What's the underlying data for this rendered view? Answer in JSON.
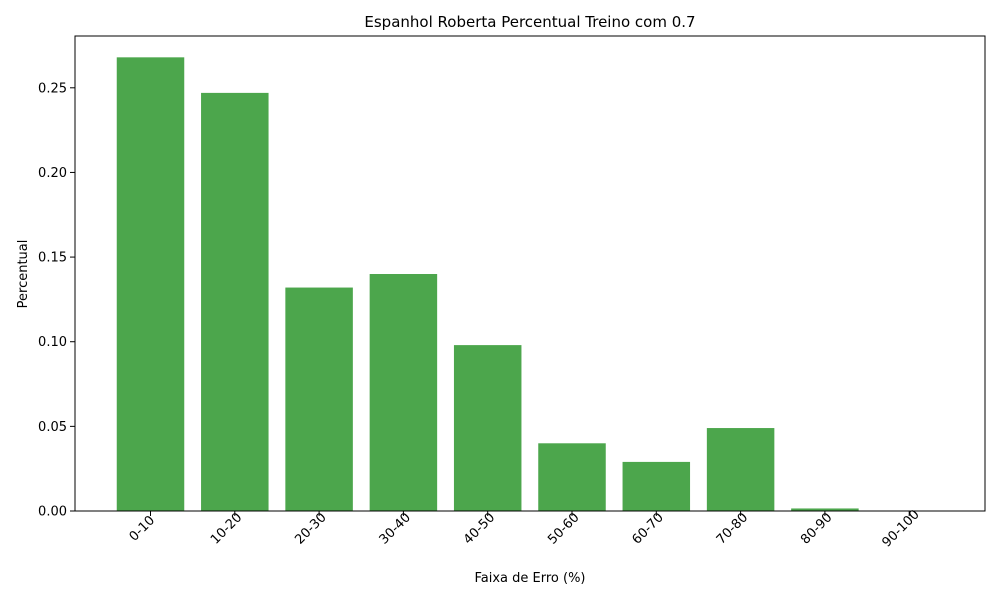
{
  "chart_data": {
    "type": "bar",
    "title": "Espanhol Roberta Percentual Treino com 0.7",
    "xlabel": "Faixa de Erro (%)",
    "ylabel": "Percentual",
    "categories": [
      "0-10",
      "10-20",
      "20-30",
      "30-40",
      "40-50",
      "50-60",
      "60-70",
      "70-80",
      "80-90",
      "90-100"
    ],
    "values": [
      0.268,
      0.247,
      0.132,
      0.14,
      0.098,
      0.04,
      0.029,
      0.049,
      0.0015,
      0.0
    ],
    "ylim": [
      0,
      0.2806
    ],
    "yticks": [
      0.0,
      0.05,
      0.1,
      0.15,
      0.2,
      0.25
    ],
    "ytick_labels": [
      "0.00",
      "0.05",
      "0.10",
      "0.15",
      "0.20",
      "0.25"
    ],
    "bar_color": "#4ca64c",
    "grid": false,
    "legend": "none"
  }
}
